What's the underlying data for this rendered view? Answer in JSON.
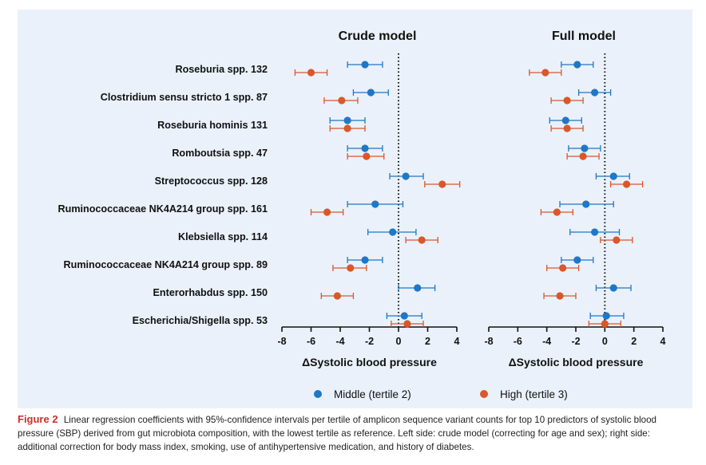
{
  "colors": {
    "middle": "#1f77c8",
    "high": "#d9572a",
    "caption_label": "#c8322b",
    "panel_background": "#eaf1fa"
  },
  "legend": {
    "middle_label": "Middle (tertile 2)",
    "high_label": "High (tertile 3)"
  },
  "caption": {
    "label": "Figure 2",
    "text": "Linear regression coefficients with 95%-confidence intervals per tertile of amplicon sequence variant counts for top 10 predictors of systolic blood pressure (SBP) derived from gut microbiota composition, with the lowest tertile as reference. Left side: crude model (correcting for age and sex); right side: additional correction for body mass index, smoking, use of antihypertensive medication, and history of diabetes."
  },
  "chart_data": [
    {
      "type": "scatter",
      "subtype": "forest-plot",
      "title": "Crude model",
      "xlabel": "ΔSystolic blood pressure",
      "xlim": [
        -8,
        4
      ],
      "xticks": [
        -8,
        -6,
        -4,
        -2,
        0,
        2,
        4
      ],
      "reference_line": 0,
      "categories": [
        "Roseburia spp. 132",
        "Clostridium sensu stricto 1 spp. 87",
        "Roseburia hominis 131",
        "Romboutsia spp. 47",
        "Streptococcus spp. 128",
        "Ruminococcaceae NK4A214 group spp. 161",
        "Klebsiella spp. 114",
        "Ruminococcaceae NK4A214 group spp. 89",
        "Enterorhabdus spp. 150",
        "Escherichia/Shigella spp. 53"
      ],
      "series": [
        {
          "name": "Middle (tertile 2)",
          "color": "#1f77c8",
          "estimate": [
            -2.3,
            -1.9,
            -3.5,
            -2.3,
            0.5,
            -1.6,
            -0.4,
            -2.3,
            1.3,
            0.4
          ],
          "ci_low": [
            -3.5,
            -3.1,
            -4.7,
            -3.5,
            -0.6,
            -3.5,
            -2.1,
            -3.5,
            0.0,
            -0.8
          ],
          "ci_high": [
            -1.1,
            -0.7,
            -2.3,
            -1.1,
            1.7,
            0.3,
            1.2,
            -1.1,
            2.5,
            1.6
          ]
        },
        {
          "name": "High (tertile 3)",
          "color": "#d9572a",
          "estimate": [
            -6.0,
            -3.9,
            -3.5,
            -2.2,
            3.0,
            -4.9,
            1.6,
            -3.3,
            -4.2,
            0.6
          ],
          "ci_low": [
            -7.1,
            -5.1,
            -4.7,
            -3.5,
            1.8,
            -6.0,
            0.5,
            -4.5,
            -5.3,
            -0.5
          ],
          "ci_high": [
            -4.9,
            -2.8,
            -2.3,
            -1.0,
            4.2,
            -3.8,
            2.7,
            -2.2,
            -3.1,
            1.7
          ]
        }
      ]
    },
    {
      "type": "scatter",
      "subtype": "forest-plot",
      "title": "Full model",
      "xlabel": "ΔSystolic blood pressure",
      "xlim": [
        -8,
        4
      ],
      "xticks": [
        -8,
        -6,
        -4,
        -2,
        0,
        2,
        4
      ],
      "reference_line": 0,
      "categories": [
        "Roseburia spp. 132",
        "Clostridium sensu stricto 1 spp. 87",
        "Roseburia hominis 131",
        "Romboutsia spp. 47",
        "Streptococcus spp. 128",
        "Ruminococcaceae NK4A214 group spp. 161",
        "Klebsiella spp. 114",
        "Ruminococcaceae NK4A214 group spp. 89",
        "Enterorhabdus spp. 150",
        "Escherichia/Shigella spp. 53"
      ],
      "series": [
        {
          "name": "Middle (tertile 2)",
          "color": "#1f77c8",
          "estimate": [
            -1.9,
            -0.7,
            -2.7,
            -1.4,
            0.6,
            -1.3,
            -0.7,
            -1.9,
            0.6,
            0.1
          ],
          "ci_low": [
            -3.0,
            -1.8,
            -3.8,
            -2.5,
            -0.6,
            -3.1,
            -2.4,
            -3.0,
            -0.6,
            -1.0
          ],
          "ci_high": [
            -0.8,
            0.4,
            -1.6,
            -0.3,
            1.7,
            0.6,
            1.0,
            -0.8,
            1.8,
            1.3
          ]
        },
        {
          "name": "High (tertile 3)",
          "color": "#d9572a",
          "estimate": [
            -4.1,
            -2.6,
            -2.6,
            -1.5,
            1.5,
            -3.3,
            0.8,
            -2.9,
            -3.1,
            0.0
          ],
          "ci_low": [
            -5.2,
            -3.7,
            -3.7,
            -2.6,
            0.4,
            -4.4,
            -0.3,
            -4.0,
            -4.2,
            -1.1
          ],
          "ci_high": [
            -3.0,
            -1.5,
            -1.5,
            -0.4,
            2.6,
            -2.2,
            1.9,
            -1.8,
            -2.0,
            1.1
          ]
        }
      ]
    }
  ]
}
